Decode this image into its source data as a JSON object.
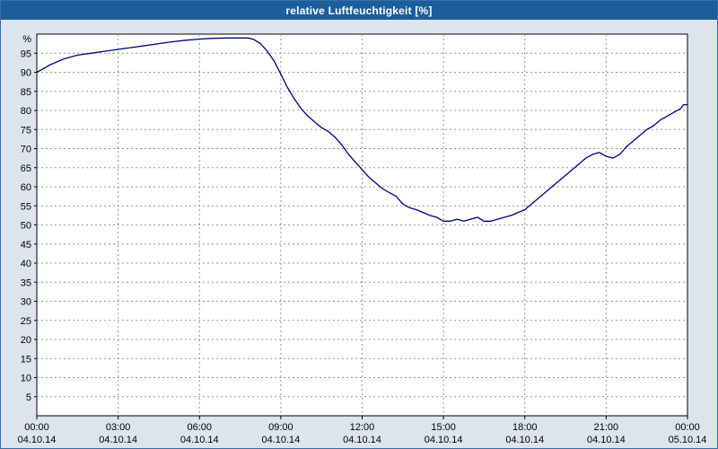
{
  "window": {
    "title": "relative Luftfeuchtigkeit [%]",
    "titlebar_bg": "#1b5e9b",
    "outer_bg": "#dde4ed",
    "border_color": "#3a6ea5"
  },
  "chart_data": {
    "type": "line",
    "title": "relative Luftfeuchtigkeit [%]",
    "ylabel": "%",
    "ylim": [
      0,
      100
    ],
    "yticks": [
      95,
      90,
      85,
      80,
      75,
      70,
      65,
      60,
      55,
      50,
      45,
      40,
      35,
      30,
      25,
      20,
      15,
      10,
      5
    ],
    "xticks": [
      {
        "hour": 0,
        "time": "00:00",
        "date": "04.10.14"
      },
      {
        "hour": 3,
        "time": "03:00",
        "date": "04.10.14"
      },
      {
        "hour": 6,
        "time": "06:00",
        "date": "04.10.14"
      },
      {
        "hour": 9,
        "time": "09:00",
        "date": "04.10.14"
      },
      {
        "hour": 12,
        "time": "12:00",
        "date": "04.10.14"
      },
      {
        "hour": 15,
        "time": "15:00",
        "date": "04.10.14"
      },
      {
        "hour": 18,
        "time": "18:00",
        "date": "04.10.14"
      },
      {
        "hour": 21,
        "time": "21:00",
        "date": "04.10.14"
      },
      {
        "hour": 24,
        "time": "00:00",
        "date": "05.10.14"
      }
    ],
    "grid": "dashed",
    "grid_color": "#84a184",
    "axis_color": "#000000",
    "plot_bg": "#ffffff",
    "series": [
      {
        "name": "relative Luftfeuchtigkeit",
        "color": "#000080",
        "points": [
          [
            0,
            90
          ],
          [
            0.25,
            91
          ],
          [
            0.5,
            92
          ],
          [
            1,
            93.5
          ],
          [
            1.5,
            94.5
          ],
          [
            2,
            95
          ],
          [
            2.5,
            95.5
          ],
          [
            3,
            96
          ],
          [
            3.5,
            96.5
          ],
          [
            4,
            97
          ],
          [
            4.5,
            97.5
          ],
          [
            5,
            98
          ],
          [
            5.5,
            98.4
          ],
          [
            6,
            98.7
          ],
          [
            6.5,
            98.9
          ],
          [
            7,
            99
          ],
          [
            7.5,
            99
          ],
          [
            7.8,
            99
          ],
          [
            8,
            98.6
          ],
          [
            8.25,
            97.5
          ],
          [
            8.5,
            95.5
          ],
          [
            8.75,
            93
          ],
          [
            9,
            89.5
          ],
          [
            9.25,
            86
          ],
          [
            9.5,
            83
          ],
          [
            9.75,
            80.5
          ],
          [
            10,
            78.5
          ],
          [
            10.25,
            77
          ],
          [
            10.5,
            75.5
          ],
          [
            10.75,
            74.5
          ],
          [
            11,
            73
          ],
          [
            11.25,
            71
          ],
          [
            11.5,
            68.5
          ],
          [
            11.75,
            66.5
          ],
          [
            12,
            64.5
          ],
          [
            12.25,
            62.5
          ],
          [
            12.5,
            61
          ],
          [
            12.75,
            59.5
          ],
          [
            13,
            58.5
          ],
          [
            13.25,
            57.5
          ],
          [
            13.5,
            55.5
          ],
          [
            13.75,
            54.5
          ],
          [
            14,
            54
          ],
          [
            14.5,
            52.5
          ],
          [
            14.75,
            52
          ],
          [
            15,
            51
          ],
          [
            15.25,
            51
          ],
          [
            15.5,
            51.5
          ],
          [
            15.75,
            51
          ],
          [
            16,
            51.5
          ],
          [
            16.25,
            52
          ],
          [
            16.5,
            51
          ],
          [
            16.75,
            51
          ],
          [
            17,
            51.5
          ],
          [
            17.5,
            52.5
          ],
          [
            18,
            54
          ],
          [
            18.25,
            55.5
          ],
          [
            18.5,
            57
          ],
          [
            18.75,
            58.5
          ],
          [
            19,
            60
          ],
          [
            19.25,
            61.5
          ],
          [
            19.5,
            63
          ],
          [
            19.75,
            64.5
          ],
          [
            20,
            66
          ],
          [
            20.25,
            67.5
          ],
          [
            20.5,
            68.5
          ],
          [
            20.75,
            69
          ],
          [
            21,
            68
          ],
          [
            21.25,
            67.5
          ],
          [
            21.5,
            68.5
          ],
          [
            21.75,
            70.5
          ],
          [
            22,
            72
          ],
          [
            22.25,
            73.5
          ],
          [
            22.5,
            75
          ],
          [
            22.75,
            76
          ],
          [
            23,
            77.5
          ],
          [
            23.25,
            78.5
          ],
          [
            23.5,
            79.5
          ],
          [
            23.75,
            80.5
          ],
          [
            23.85,
            81.5
          ],
          [
            24,
            81.5
          ]
        ]
      }
    ]
  }
}
